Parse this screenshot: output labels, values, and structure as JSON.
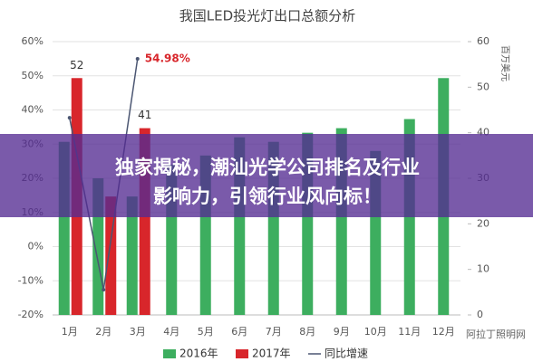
{
  "chart_data": {
    "type": "bar",
    "title": "我国LED投光灯出口总额分析",
    "y2_label": "百万美元",
    "categories": [
      "1月",
      "2月",
      "3月",
      "4月",
      "5月",
      "6月",
      "7月",
      "8月",
      "9月",
      "10月",
      "11月",
      "12月"
    ],
    "series": [
      {
        "name": "2016年",
        "type": "bar",
        "axis": "y2",
        "color": "#3dae5f",
        "values": [
          38,
          30,
          26,
          33,
          35,
          39,
          38,
          40,
          41,
          36,
          43,
          52
        ]
      },
      {
        "name": "2017年",
        "type": "bar",
        "axis": "y2",
        "color": "#d8262b",
        "values": [
          52,
          26,
          41,
          null,
          null,
          null,
          null,
          null,
          null,
          null,
          null,
          null
        ],
        "value_labels": [
          "52",
          null,
          "41",
          null,
          null,
          null,
          null,
          null,
          null,
          null,
          null,
          null
        ]
      },
      {
        "name": "同比增速",
        "type": "line",
        "axis": "y",
        "color": "#4b5672",
        "values": [
          37.7,
          -12.6,
          54.98,
          null,
          null,
          null,
          null,
          null,
          null,
          null,
          null,
          null
        ],
        "value_labels": [
          null,
          null,
          "54.98%",
          null,
          null,
          null,
          null,
          null,
          null,
          null,
          null,
          null
        ]
      }
    ],
    "ylim": [
      -20,
      60
    ],
    "yticks": [
      {
        "value": -20,
        "label": "-20%"
      },
      {
        "value": -10,
        "label": "-10%"
      },
      {
        "value": 0,
        "label": "0%"
      },
      {
        "value": 10,
        "label": "10%"
      },
      {
        "value": 20,
        "label": "20%"
      },
      {
        "value": 30,
        "label": "30%"
      },
      {
        "value": 40,
        "label": "40%"
      },
      {
        "value": 50,
        "label": "50%"
      },
      {
        "value": 60,
        "label": "60%"
      }
    ],
    "y2lim": [
      0,
      60
    ],
    "y2ticks": [
      0,
      10,
      20,
      30,
      40,
      50,
      60
    ],
    "grid": true
  },
  "overlay": {
    "lines": [
      "独家揭秘，潮汕光学公司排名及行业",
      "影响力，引领行业风向标！"
    ]
  },
  "watermark": "阿拉丁照明网"
}
